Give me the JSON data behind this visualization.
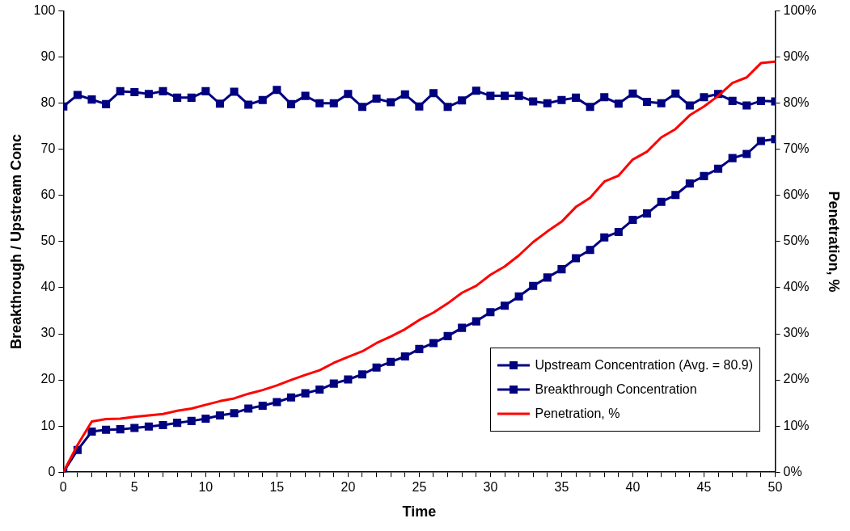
{
  "chart_data": {
    "type": "line",
    "xlabel": "Time",
    "ylabel": "Breakthrough / Upstream Conc",
    "y2label": "Penetration, %",
    "x": [
      0,
      1,
      2,
      3,
      4,
      5,
      6,
      7,
      8,
      9,
      10,
      11,
      12,
      13,
      14,
      15,
      16,
      17,
      18,
      19,
      20,
      21,
      22,
      23,
      24,
      25,
      26,
      27,
      28,
      29,
      30,
      31,
      32,
      33,
      34,
      35,
      36,
      37,
      38,
      39,
      40,
      41,
      42,
      43,
      44,
      45,
      46,
      47,
      48,
      49,
      50
    ],
    "xlim": [
      0,
      50
    ],
    "xticks": [
      0,
      {
        "value": 1,
        "label": null
      },
      {
        "value": 2,
        "label": null
      },
      {
        "value": 3,
        "label": null
      },
      {
        "value": 4,
        "label": null
      },
      5,
      {
        "value": 6,
        "label": null
      },
      {
        "value": 7,
        "label": null
      },
      {
        "value": 8,
        "label": null
      },
      {
        "value": 9,
        "label": null
      },
      10,
      {
        "value": 11,
        "label": null
      },
      {
        "value": 12,
        "label": null
      },
      {
        "value": 13,
        "label": null
      },
      {
        "value": 14,
        "label": null
      },
      15,
      {
        "value": 16,
        "label": null
      },
      {
        "value": 17,
        "label": null
      },
      {
        "value": 18,
        "label": null
      },
      {
        "value": 19,
        "label": null
      },
      20,
      {
        "value": 21,
        "label": null
      },
      {
        "value": 22,
        "label": null
      },
      {
        "value": 23,
        "label": null
      },
      {
        "value": 24,
        "label": null
      },
      25,
      {
        "value": 26,
        "label": null
      },
      {
        "value": 27,
        "label": null
      },
      {
        "value": 28,
        "label": null
      },
      {
        "value": 29,
        "label": null
      },
      30,
      {
        "value": 31,
        "label": null
      },
      {
        "value": 32,
        "label": null
      },
      {
        "value": 33,
        "label": null
      },
      {
        "value": 34,
        "label": null
      },
      35,
      {
        "value": 36,
        "label": null
      },
      {
        "value": 37,
        "label": null
      },
      {
        "value": 38,
        "label": null
      },
      {
        "value": 39,
        "label": null
      },
      40,
      {
        "value": 41,
        "label": null
      },
      {
        "value": 42,
        "label": null
      },
      {
        "value": 43,
        "label": null
      },
      {
        "value": 44,
        "label": null
      },
      45,
      {
        "value": 46,
        "label": null
      },
      {
        "value": 47,
        "label": null
      },
      {
        "value": 48,
        "label": null
      },
      {
        "value": 49,
        "label": null
      },
      50
    ],
    "ylim": [
      0,
      100
    ],
    "yticks": [
      0,
      10,
      20,
      30,
      40,
      50,
      60,
      70,
      80,
      90,
      100
    ],
    "y2lim": [
      0,
      100
    ],
    "y2ticks": [
      {
        "value": 0,
        "label": "0%"
      },
      {
        "value": 10,
        "label": "10%"
      },
      {
        "value": 20,
        "label": "20%"
      },
      {
        "value": 30,
        "label": "30%"
      },
      {
        "value": 40,
        "label": "40%"
      },
      {
        "value": 50,
        "label": "50%"
      },
      {
        "value": 60,
        "label": "60%"
      },
      {
        "value": 70,
        "label": "70%"
      },
      {
        "value": 80,
        "label": "80%"
      },
      {
        "value": 90,
        "label": "90%"
      },
      {
        "value": 100,
        "label": "100%"
      }
    ],
    "grid": false,
    "legend": "bottom right",
    "series": [
      {
        "name": "Upstream Concentration (Avg. = 80.9)",
        "color": "#000080",
        "marker": "square",
        "values": [
          79.3,
          81.8,
          80.8,
          79.8,
          82.6,
          82.4,
          82.0,
          82.6,
          81.2,
          81.2,
          82.6,
          79.9,
          82.5,
          79.7,
          80.7,
          82.9,
          79.8,
          81.6,
          80.0,
          80.0,
          82.0,
          79.2,
          81.0,
          80.2,
          81.9,
          79.3,
          82.2,
          79.2,
          80.6,
          82.7,
          81.6,
          81.6,
          81.6,
          80.4,
          80.0,
          80.7,
          81.2,
          79.2,
          81.3,
          79.9,
          82.1,
          80.3,
          80.0,
          82.1,
          79.5,
          81.3,
          82.0,
          80.5,
          79.5,
          80.5,
          80.4
        ]
      },
      {
        "name": "Breakthrough Concentration",
        "color": "#000080",
        "marker": "square",
        "values": [
          0,
          4.8,
          8.8,
          9.2,
          9.3,
          9.6,
          9.9,
          10.2,
          10.7,
          11.1,
          11.6,
          12.3,
          12.8,
          13.8,
          14.4,
          15.2,
          16.2,
          17.1,
          17.9,
          19.2,
          20.1,
          21.2,
          22.7,
          23.9,
          25.1,
          26.7,
          28.0,
          29.5,
          31.3,
          32.7,
          34.7,
          36.1,
          38.1,
          40.4,
          42.2,
          44.0,
          46.4,
          48.2,
          50.9,
          52.1,
          54.7,
          56.1,
          58.6,
          60.1,
          62.6,
          64.2,
          65.8,
          68.1,
          69.0,
          71.8,
          72.2
        ]
      },
      {
        "name": "Penetration, %",
        "color": "#ff0000",
        "marker": "none",
        "axis": "y2",
        "values": [
          0,
          5.9,
          11.0,
          11.5,
          11.6,
          12.0,
          12.3,
          12.6,
          13.3,
          13.8,
          14.6,
          15.4,
          16.0,
          17.0,
          17.8,
          18.8,
          20.0,
          21.1,
          22.1,
          23.7,
          25.0,
          26.2,
          28.0,
          29.4,
          31.0,
          33.0,
          34.6,
          36.6,
          38.9,
          40.4,
          42.8,
          44.6,
          47.0,
          49.9,
          52.2,
          54.3,
          57.5,
          59.5,
          63.0,
          64.3,
          67.8,
          69.5,
          72.6,
          74.4,
          77.4,
          79.3,
          81.6,
          84.4,
          85.6,
          88.7,
          89.0
        ]
      }
    ]
  }
}
